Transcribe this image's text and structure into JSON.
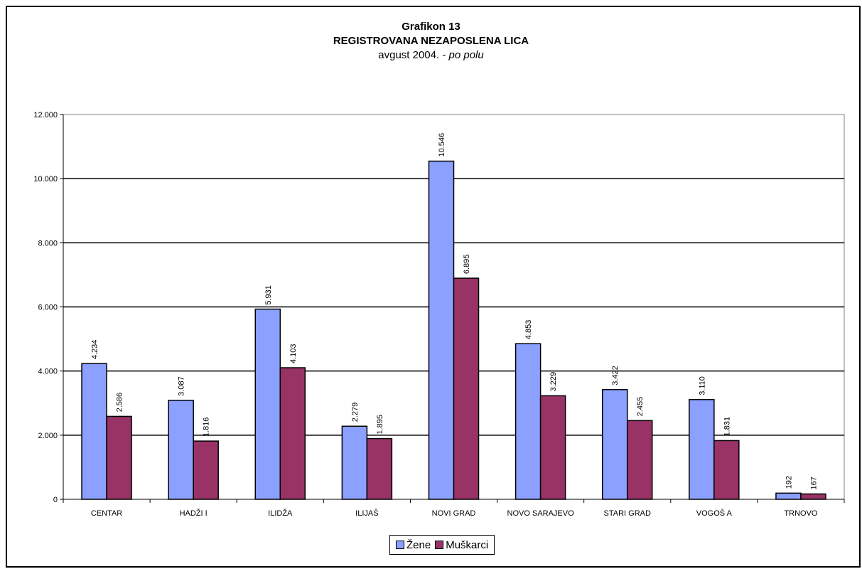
{
  "chart_data": {
    "type": "bar",
    "title": "Grafikon 13",
    "subtitle": "REGISTROVANA NEZAPOSLENA LICA",
    "subtitle2_regular": "avgust 2004. - ",
    "subtitle2_italic": "po polu",
    "categories": [
      "CENTAR",
      "HADŽI I",
      "ILIDŽA",
      "ILIJAŠ",
      "NOVI GRAD",
      "NOVO SARAJEVO",
      "STARI GRAD",
      "VOGOŠ A",
      "TRNOVO"
    ],
    "series": [
      {
        "name": "Žene",
        "color": "#8ca0ff",
        "values": [
          4234,
          3087,
          5931,
          2279,
          10546,
          4853,
          3422,
          3110,
          192
        ],
        "labels": [
          "4.234",
          "3.087",
          "5.931",
          "2.279",
          "10.546",
          "4.853",
          "3.422",
          "3.110",
          "192"
        ]
      },
      {
        "name": "Muškarci",
        "color": "#993366",
        "values": [
          2586,
          1816,
          4103,
          1895,
          6895,
          3229,
          2455,
          1831,
          167
        ],
        "labels": [
          "2.586",
          "1.816",
          "4.103",
          "1.895",
          "6.895",
          "3.229",
          "2.455",
          "1.831",
          "167"
        ]
      }
    ],
    "ylim": [
      0,
      12000
    ],
    "yticks": [
      0,
      2000,
      4000,
      6000,
      8000,
      10000,
      12000
    ],
    "ytick_labels": [
      "0",
      "2.000",
      "4.000",
      "6.000",
      "8.000",
      "10.000",
      "12.000"
    ],
    "grid": true,
    "legend_position": "bottom",
    "xlabel": "",
    "ylabel": ""
  }
}
